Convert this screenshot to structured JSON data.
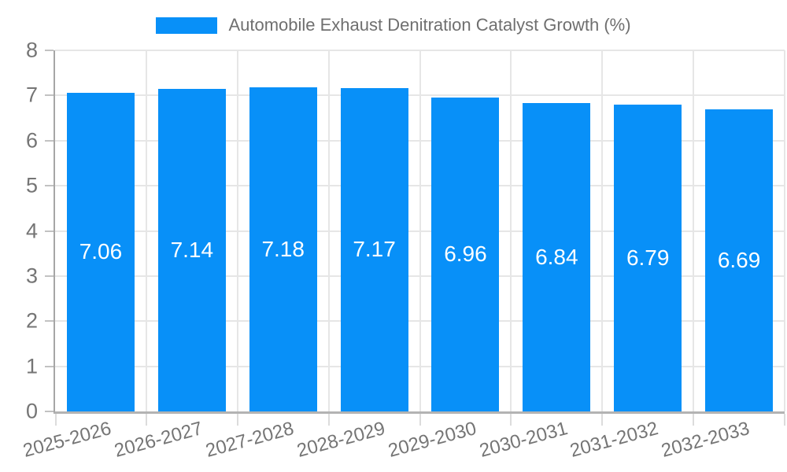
{
  "legend": {
    "label": "Automobile Exhaust Denitration Catalyst Growth (%)"
  },
  "colors": {
    "bar": "#0890F8",
    "axis": "#b0b0b0",
    "grid": "#e6e6e6",
    "tick_text": "#757575",
    "legend_text": "#6f6f6f",
    "value_text": "#ffffff",
    "background": "#ffffff"
  },
  "chart_data": {
    "type": "bar",
    "title": "Automobile Exhaust Denitration Catalyst Growth (%)",
    "categories": [
      "2025-2026",
      "2026-2027",
      "2027-2028",
      "2028-2029",
      "2029-2030",
      "2030-2031",
      "2031-2032",
      "2032-2033"
    ],
    "values": [
      7.06,
      7.14,
      7.18,
      7.17,
      6.96,
      6.84,
      6.79,
      6.69
    ],
    "value_label_decimals": 2,
    "xlabel": "",
    "ylabel": "",
    "ylim": [
      0,
      8
    ],
    "yticks": [
      0,
      1,
      2,
      3,
      4,
      5,
      6,
      7,
      8
    ],
    "grid": true,
    "legend_position": "top",
    "value_labels_inside_bars": true,
    "xtick_rotation_deg": -15
  }
}
